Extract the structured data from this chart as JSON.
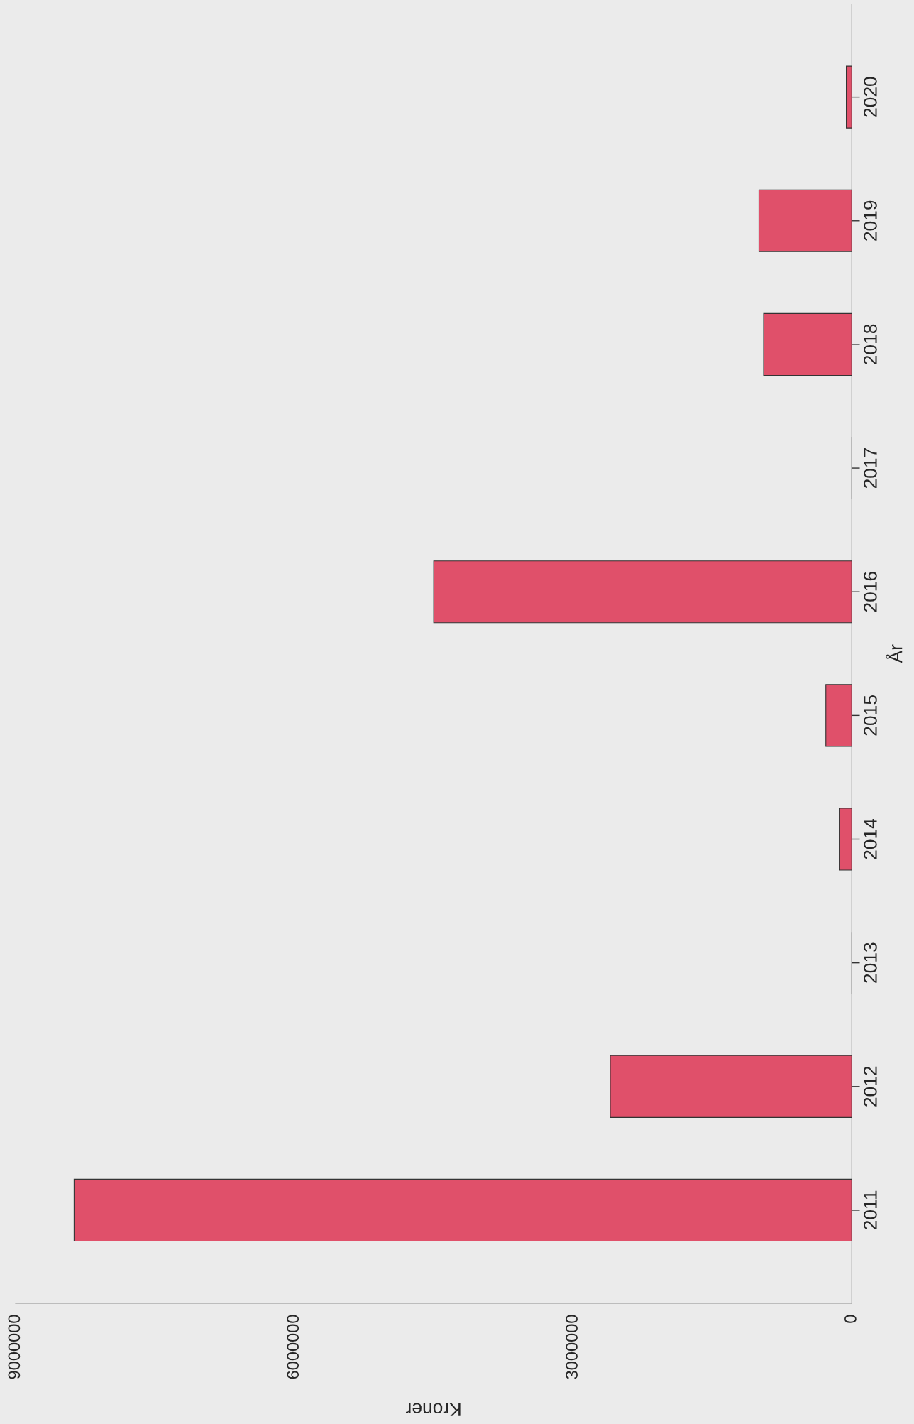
{
  "chart_data": {
    "type": "bar",
    "orientation": "horizontal",
    "xlabel": "Kroner",
    "ylabel": "År",
    "categories": [
      "2020",
      "2019",
      "2018",
      "2017",
      "2016",
      "2015",
      "2014",
      "2013",
      "2012",
      "2011"
    ],
    "values": [
      60000,
      1000000,
      950000,
      0,
      4500000,
      280000,
      130000,
      0,
      2600000,
      8370000
    ],
    "color": "#e0506a",
    "xlim": [
      9000000,
      0
    ],
    "xticks": [
      0,
      3000000,
      6000000,
      9000000
    ],
    "grid": false
  }
}
